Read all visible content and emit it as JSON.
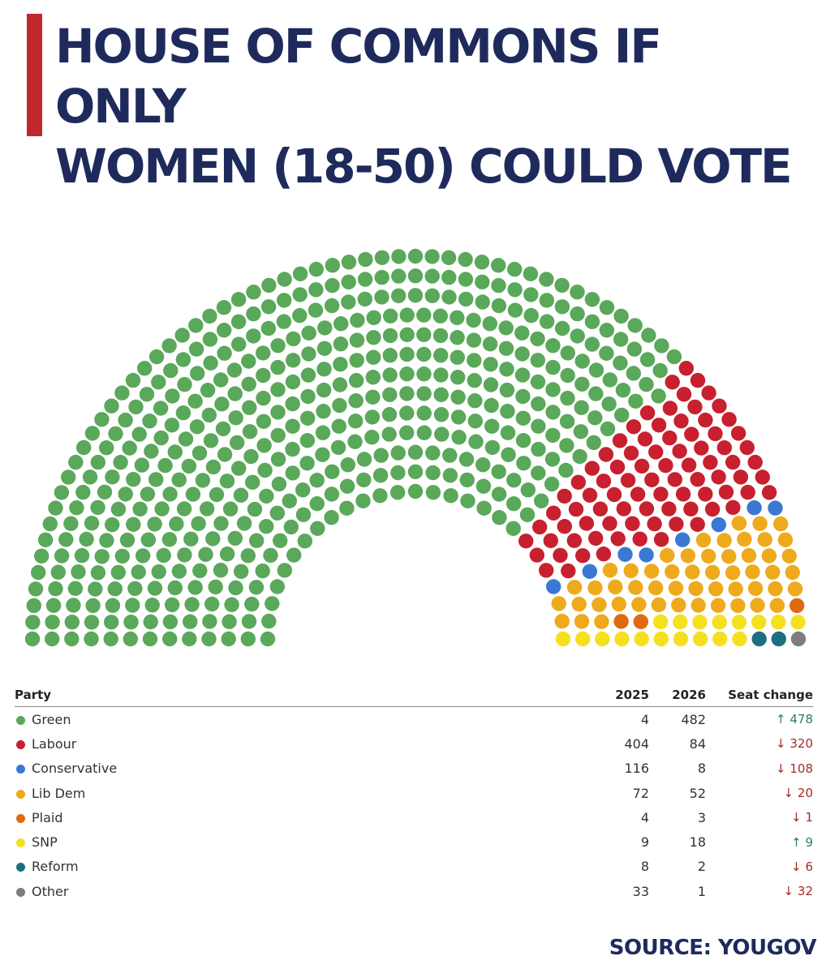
{
  "title": {
    "line1": "HOUSE OF COMMONS IF ONLY",
    "line2": "WOMEN (18-50) COULD VOTE"
  },
  "source": "SOURCE: YOUGOV",
  "table": {
    "headers": {
      "party": "Party",
      "y2025": "2025",
      "y2026": "2026",
      "change": "Seat change"
    },
    "rows": [
      {
        "party": "Green",
        "y2025": "4",
        "y2026": "482",
        "change": "478",
        "direction": "up",
        "arrow": "↑"
      },
      {
        "party": "Labour",
        "y2025": "404",
        "y2026": "84",
        "change": "320",
        "direction": "down",
        "arrow": "↓"
      },
      {
        "party": "Conservative",
        "y2025": "116",
        "y2026": "8",
        "change": "108",
        "direction": "down",
        "arrow": "↓"
      },
      {
        "party": "Lib Dem",
        "y2025": "72",
        "y2026": "52",
        "change": "20",
        "direction": "down",
        "arrow": "↓"
      },
      {
        "party": "Plaid",
        "y2025": "4",
        "y2026": "3",
        "change": "1",
        "direction": "down",
        "arrow": "↓"
      },
      {
        "party": "SNP",
        "y2025": "9",
        "y2026": "18",
        "change": "9",
        "direction": "up",
        "arrow": "↑"
      },
      {
        "party": "Reform",
        "y2025": "8",
        "y2026": "2",
        "change": "6",
        "direction": "down",
        "arrow": "↓"
      },
      {
        "party": "Other",
        "y2025": "33",
        "y2026": "1",
        "change": "32",
        "direction": "down",
        "arrow": "↓"
      }
    ]
  },
  "chart_data": {
    "type": "hemicycle",
    "title": "HOUSE OF COMMONS IF ONLY WOMEN (18-50) COULD VOTE",
    "total_seats": 650,
    "series": [
      {
        "name": "Green",
        "seats": 482,
        "color": "#5aa85a"
      },
      {
        "name": "Labour",
        "seats": 84,
        "color": "#c8202f"
      },
      {
        "name": "Conservative",
        "seats": 8,
        "color": "#3a78d4"
      },
      {
        "name": "Lib Dem",
        "seats": 52,
        "color": "#eeaa1c"
      },
      {
        "name": "Plaid",
        "seats": 3,
        "color": "#df6a10"
      },
      {
        "name": "SNP",
        "seats": 18,
        "color": "#f5e020"
      },
      {
        "name": "Reform",
        "seats": 2,
        "color": "#1d6e80"
      },
      {
        "name": "Other",
        "seats": 1,
        "color": "#7d7d7d"
      }
    ],
    "seats_2025": [
      4,
      404,
      116,
      72,
      4,
      9,
      8,
      33
    ],
    "seats_2026": [
      482,
      84,
      8,
      52,
      3,
      18,
      2,
      1
    ],
    "seat_change": [
      478,
      -320,
      -108,
      -20,
      -1,
      9,
      -6,
      -32
    ]
  }
}
